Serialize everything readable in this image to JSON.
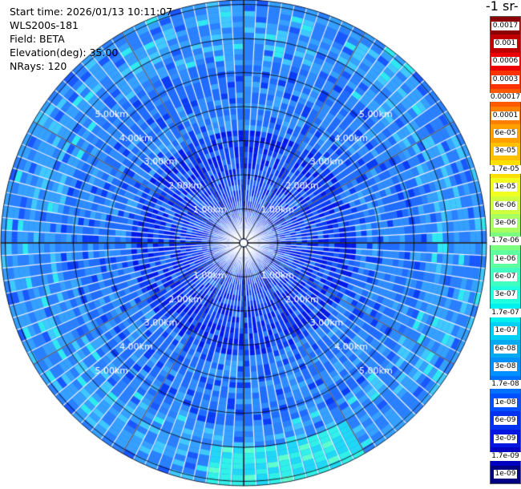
{
  "info": {
    "start_time": "Start time: 2026/01/13 10:11:07",
    "device": "WLS200s-181",
    "field": "Field: BETA",
    "elevation": "Elevation(deg): 35.00",
    "nrays": "NRays: 120"
  },
  "colorbar": {
    "unit_title": "-1 sr-",
    "labels": [
      "0.0017",
      "0.001",
      "0.0006",
      "0.0003",
      "0.00017",
      "0.0001",
      "6e-05",
      "3e-05",
      "1.7e-05",
      "1e-05",
      "6e-06",
      "3e-06",
      "1.7e-06",
      "1e-06",
      "6e-07",
      "3e-07",
      "1.7e-07",
      "1e-07",
      "6e-08",
      "3e-08",
      "1.7e-08",
      "1e-08",
      "6e-09",
      "3e-09",
      "1.7e-09",
      "1e-09"
    ],
    "colors": [
      "#8b0000",
      "#c00000",
      "#ee0000",
      "#ff3300",
      "#ff5a00",
      "#ff7f00",
      "#ffa000",
      "#ffc000",
      "#ffe000",
      "#f0ff20",
      "#d0ff40",
      "#a8ff60",
      "#7cff80",
      "#60ffa0",
      "#40ffc0",
      "#20ffe0",
      "#00f0f0",
      "#00d0f5",
      "#00aaf0",
      "#0090ff",
      "#0070ff",
      "#0050ff",
      "#0030f0",
      "#0015e0",
      "#0000c0",
      "#000080"
    ]
  },
  "range_labels": [
    "1.00km",
    "2.00km",
    "3.00km",
    "4.00km",
    "5.00km"
  ]
}
